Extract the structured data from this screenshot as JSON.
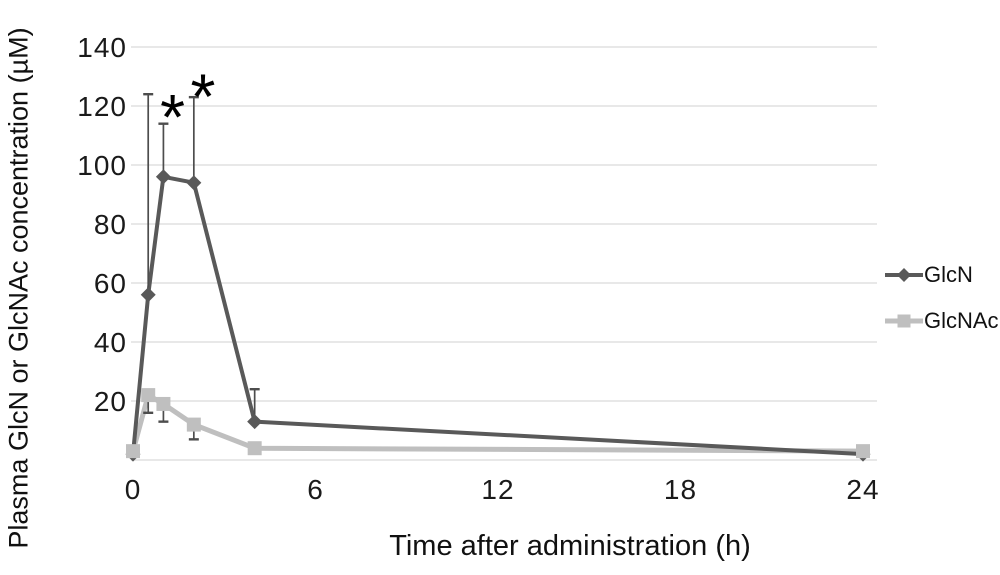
{
  "chart_data": {
    "type": "line",
    "title": "",
    "xlabel": "Time after administration (h)",
    "ylabel": "Plasma GlcN or GlcNAc concentration (µM)",
    "x_ticks": [
      0,
      6,
      12,
      18,
      24
    ],
    "y_ticks": [
      20,
      40,
      60,
      80,
      100,
      120,
      140
    ],
    "xlim": [
      0,
      24.5
    ],
    "ylim": [
      0,
      140
    ],
    "grid": "horizontal",
    "legend_position": "right",
    "colors": {
      "gridline": "#d9d9d9",
      "error_bar": "#4d4d4d",
      "text": "#1a1a1a",
      "background": "#ffffff"
    },
    "x": [
      0,
      0.5,
      1,
      2,
      4,
      24
    ],
    "series": [
      {
        "name": "GlcN",
        "color": "#595959",
        "marker": "diamond",
        "line_width": 4,
        "values": [
          2,
          56,
          96,
          94,
          13,
          2
        ],
        "err_up": [
          0,
          68,
          18,
          29,
          11,
          0
        ],
        "err_down": [
          0,
          0,
          0,
          0,
          0,
          0
        ]
      },
      {
        "name": "GlcNAc",
        "color": "#bfbfbf",
        "marker": "square",
        "line_width": 5,
        "values": [
          3,
          22,
          19,
          12,
          4,
          3
        ],
        "err_up": [
          0,
          0,
          0,
          0,
          0,
          0
        ],
        "err_down": [
          0,
          6,
          6,
          5,
          0,
          0
        ]
      }
    ],
    "annotations": [
      {
        "text": "*",
        "x": 1.3,
        "y": 120
      },
      {
        "text": "*",
        "x": 2.3,
        "y": 127
      }
    ]
  }
}
